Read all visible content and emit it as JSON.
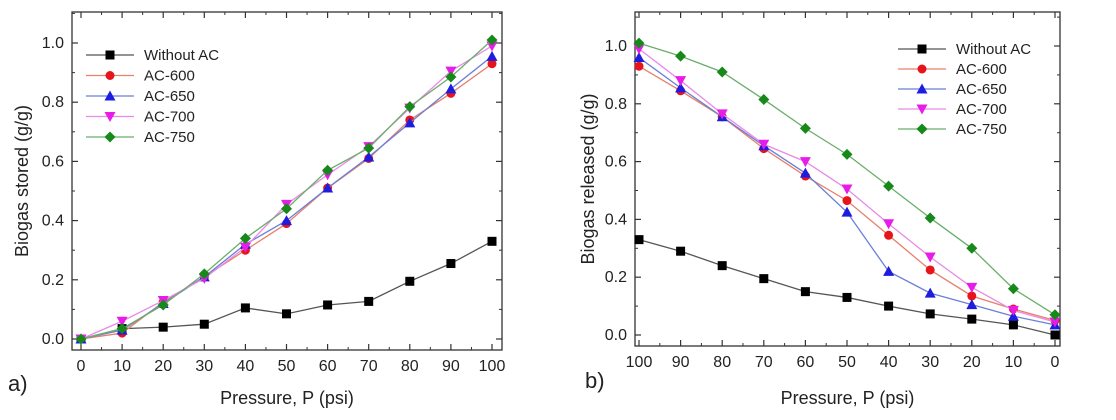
{
  "chart_data": [
    {
      "type": "line",
      "panel_label": "a)",
      "xlabel": "Pressure, P (psi)",
      "ylabel": "Biogas stored (g/g)",
      "xlim": [
        0,
        100
      ],
      "ylim": [
        0,
        1.0
      ],
      "x_reversed": false,
      "xticks": [
        "0",
        "10",
        "20",
        "30",
        "40",
        "50",
        "60",
        "70",
        "80",
        "90",
        "100"
      ],
      "yticks": [
        "0.0",
        "0.2",
        "0.4",
        "0.6",
        "0.8",
        "1.0"
      ],
      "legend_position": "top-left",
      "x": [
        0,
        10,
        20,
        30,
        40,
        50,
        60,
        70,
        80,
        90,
        100
      ],
      "series": [
        {
          "name": "Without AC",
          "marker": "square",
          "color": "#000000",
          "line_color": "#555555",
          "values": [
            0,
            0.035,
            0.04,
            0.05,
            0.105,
            0.085,
            0.115,
            0.127,
            0.195,
            0.255,
            0.33
          ]
        },
        {
          "name": "AC-600",
          "marker": "circle",
          "color": "#e8141b",
          "line_color": "#e8806a",
          "values": [
            0,
            0.02,
            0.125,
            0.21,
            0.3,
            0.39,
            0.51,
            0.61,
            0.74,
            0.83,
            0.93
          ]
        },
        {
          "name": "AC-650",
          "marker": "triangle-up",
          "color": "#1d1de0",
          "line_color": "#6a7fd8",
          "values": [
            0,
            0.03,
            0.12,
            0.21,
            0.32,
            0.4,
            0.51,
            0.615,
            0.73,
            0.845,
            0.955
          ]
        },
        {
          "name": "AC-700",
          "marker": "triangle-down",
          "color": "#e81ce8",
          "line_color": "#e88ae8",
          "values": [
            0,
            0.06,
            0.13,
            0.205,
            0.31,
            0.455,
            0.555,
            0.65,
            0.78,
            0.905,
            0.99
          ]
        },
        {
          "name": "AC-750",
          "marker": "diamond",
          "color": "#17891a",
          "line_color": "#6aae6a",
          "values": [
            0,
            0.035,
            0.115,
            0.22,
            0.34,
            0.44,
            0.57,
            0.645,
            0.785,
            0.885,
            1.01
          ]
        }
      ]
    },
    {
      "type": "line",
      "panel_label": "b)",
      "xlabel": "Pressure, P (psi)",
      "ylabel": "Biogas released (g/g)",
      "xlim": [
        100,
        0
      ],
      "ylim": [
        0,
        1.0
      ],
      "x_reversed": true,
      "xticks": [
        "100",
        "90",
        "80",
        "70",
        "60",
        "50",
        "40",
        "30",
        "20",
        "10",
        "0"
      ],
      "yticks": [
        "0.0",
        "0.2",
        "0.4",
        "0.6",
        "0.8",
        "1.0"
      ],
      "legend_position": "top-right",
      "x": [
        100,
        90,
        80,
        70,
        60,
        50,
        40,
        30,
        20,
        10,
        0
      ],
      "series": [
        {
          "name": "Without AC",
          "marker": "square",
          "color": "#000000",
          "line_color": "#555555",
          "values": [
            0.33,
            0.29,
            0.24,
            0.195,
            0.15,
            0.13,
            0.1,
            0.073,
            0.055,
            0.035,
            0
          ]
        },
        {
          "name": "AC-600",
          "marker": "circle",
          "color": "#e8141b",
          "line_color": "#e8806a",
          "values": [
            0.93,
            0.845,
            0.755,
            0.645,
            0.55,
            0.465,
            0.345,
            0.225,
            0.135,
            0.09,
            0.05
          ]
        },
        {
          "name": "AC-650",
          "marker": "triangle-up",
          "color": "#1d1de0",
          "line_color": "#6a7fd8",
          "values": [
            0.96,
            0.855,
            0.755,
            0.655,
            0.56,
            0.425,
            0.22,
            0.145,
            0.105,
            0.065,
            0.035
          ]
        },
        {
          "name": "AC-700",
          "marker": "triangle-down",
          "color": "#e81ce8",
          "line_color": "#e88ae8",
          "values": [
            0.99,
            0.88,
            0.765,
            0.66,
            0.6,
            0.505,
            0.385,
            0.27,
            0.165,
            0.085,
            0.045
          ]
        },
        {
          "name": "AC-750",
          "marker": "diamond",
          "color": "#17891a",
          "line_color": "#6aae6a",
          "values": [
            1.01,
            0.965,
            0.91,
            0.815,
            0.715,
            0.625,
            0.515,
            0.405,
            0.3,
            0.16,
            0.07
          ]
        }
      ]
    }
  ]
}
